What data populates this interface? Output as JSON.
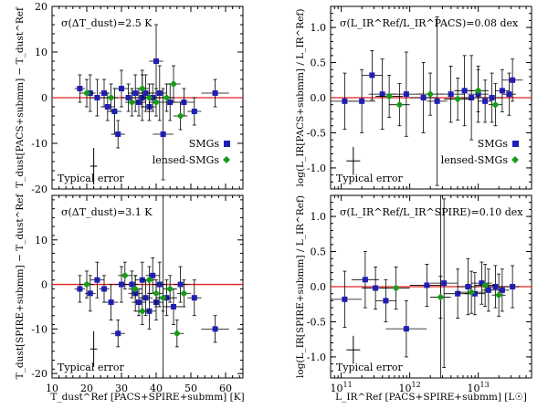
{
  "legend": {
    "smgs": "SMGs",
    "lensed": "lensed-SMGs"
  },
  "colors": {
    "smg": "#1f1fb4",
    "lensed": "#1a9a1a",
    "ref_line": "#e02020",
    "axis": "#000000"
  },
  "chart_data": [
    {
      "id": "tl",
      "type": "scatter",
      "annotation": "σ(ΔT_dust)=2.5 K",
      "typical_error": "Typical error",
      "ylabel": "T_dust[PACS+submm] − T_dust^Ref",
      "xlabel": "",
      "xlim": [
        10,
        65
      ],
      "ylim": [
        -20,
        20
      ],
      "xticks": [
        10,
        20,
        30,
        40,
        50,
        60
      ],
      "yticks": [
        -20,
        -10,
        0,
        10,
        20
      ],
      "show_xticklabels": false,
      "legend": true,
      "ref_line": 0,
      "typical_error_bar": {
        "x": 22,
        "y": -15,
        "xerr": 1,
        "yerr": 4
      },
      "series": [
        {
          "name": "SMGs",
          "points": [
            {
              "x": 18,
              "y": 2,
              "xe": 1.5,
              "ye": 3
            },
            {
              "x": 21,
              "y": 1,
              "xe": 1.5,
              "ye": 4
            },
            {
              "x": 23,
              "y": 0,
              "xe": 2,
              "ye": 4
            },
            {
              "x": 25,
              "y": 1,
              "xe": 1.5,
              "ye": 3
            },
            {
              "x": 26,
              "y": -2,
              "xe": 2,
              "ye": 3
            },
            {
              "x": 28,
              "y": -3,
              "xe": 2,
              "ye": 5
            },
            {
              "x": 29,
              "y": -8,
              "xe": 2,
              "ye": 3
            },
            {
              "x": 30,
              "y": 2,
              "xe": 2,
              "ye": 4
            },
            {
              "x": 32,
              "y": 0,
              "xe": 2,
              "ye": 3
            },
            {
              "x": 34,
              "y": 1,
              "xe": 2,
              "ye": 4
            },
            {
              "x": 35,
              "y": -1,
              "xe": 2,
              "ye": 3
            },
            {
              "x": 36,
              "y": 0,
              "xe": 2,
              "ye": 5
            },
            {
              "x": 37,
              "y": 1,
              "xe": 2,
              "ye": 4
            },
            {
              "x": 38,
              "y": -2,
              "xe": 2,
              "ye": 3
            },
            {
              "x": 39,
              "y": 0,
              "xe": 2,
              "ye": 3
            },
            {
              "x": 40,
              "y": 8,
              "xe": 2,
              "ye": 8
            },
            {
              "x": 41,
              "y": 1,
              "xe": 2,
              "ye": 6
            },
            {
              "x": 42,
              "y": -8,
              "xe": 3,
              "ye": 10
            },
            {
              "x": 44,
              "y": -1,
              "xe": 2,
              "ye": 4
            },
            {
              "x": 48,
              "y": -1,
              "xe": 3,
              "ye": 3
            },
            {
              "x": 51,
              "y": -3,
              "xe": 2,
              "ye": 3
            },
            {
              "x": 57,
              "y": 1,
              "xe": 4,
              "ye": 3
            }
          ]
        },
        {
          "name": "lensed-SMGs",
          "points": [
            {
              "x": 20,
              "y": 1,
              "xe": 2,
              "ye": 3
            },
            {
              "x": 27,
              "y": 0,
              "xe": 2,
              "ye": 3
            },
            {
              "x": 33,
              "y": -1,
              "xe": 2,
              "ye": 3
            },
            {
              "x": 36,
              "y": 2,
              "xe": 2,
              "ye": 4
            },
            {
              "x": 38,
              "y": 0,
              "xe": 2,
              "ye": 3
            },
            {
              "x": 40,
              "y": -1,
              "xe": 2,
              "ye": 3
            },
            {
              "x": 43,
              "y": 0,
              "xe": 2,
              "ye": 3
            },
            {
              "x": 45,
              "y": 3,
              "xe": 2,
              "ye": 4
            },
            {
              "x": 47,
              "y": -4,
              "xe": 2,
              "ye": 3
            }
          ]
        }
      ]
    },
    {
      "id": "tr",
      "type": "scatter",
      "annotation": "σ(L_IR^Ref/L_IR^PACS)=0.08 dex",
      "typical_error": "Typical error",
      "ylabel": "log(L_IR[PACS+submm] / L_IR^Ref)",
      "xlabel": "",
      "xlog": true,
      "xlim": [
        70000000000.0,
        60000000000000.0
      ],
      "ylim": [
        -1.3,
        1.3
      ],
      "xticks_log": [
        11,
        12,
        13
      ],
      "yticks": [
        -1.0,
        -0.5,
        0.0,
        0.5,
        1.0
      ],
      "show_xticklabels": false,
      "legend": true,
      "ref_line": 0,
      "typical_error_bar": {
        "x": 150000000000.0,
        "y": -0.9,
        "xerr_dex": 0.1,
        "yerr": 0.2
      },
      "series": [
        {
          "name": "SMGs",
          "points": [
            {
              "lx": 11.05,
              "y": -0.05,
              "xe": 0.25,
              "ye": 0.4
            },
            {
              "lx": 11.3,
              "y": -0.05,
              "xe": 0.2,
              "ye": 0.45
            },
            {
              "lx": 11.45,
              "y": 0.32,
              "xe": 0.15,
              "ye": 0.35
            },
            {
              "lx": 11.6,
              "y": 0.05,
              "xe": 0.2,
              "ye": 0.5
            },
            {
              "lx": 11.95,
              "y": 0.05,
              "xe": 0.25,
              "ye": 0.6
            },
            {
              "lx": 12.2,
              "y": 0.0,
              "xe": 0.2,
              "ye": 0.5
            },
            {
              "lx": 12.4,
              "y": -0.05,
              "xe": 0.15,
              "ye": 1.2
            },
            {
              "lx": 12.6,
              "y": 0.05,
              "xe": 0.2,
              "ye": 0.4
            },
            {
              "lx": 12.8,
              "y": 0.1,
              "xe": 0.15,
              "ye": 0.5
            },
            {
              "lx": 12.9,
              "y": 0.0,
              "xe": 0.15,
              "ye": 0.6
            },
            {
              "lx": 13.0,
              "y": 0.05,
              "xe": 0.15,
              "ye": 0.4
            },
            {
              "lx": 13.1,
              "y": -0.05,
              "xe": 0.1,
              "ye": 0.3
            },
            {
              "lx": 13.2,
              "y": 0.0,
              "xe": 0.15,
              "ye": 0.35
            },
            {
              "lx": 13.35,
              "y": 0.1,
              "xe": 0.1,
              "ye": 0.3
            },
            {
              "lx": 13.5,
              "y": 0.25,
              "xe": 0.15,
              "ye": 0.3
            },
            {
              "lx": 13.45,
              "y": 0.05,
              "xe": 0.1,
              "ye": 0.3
            }
          ]
        },
        {
          "name": "lensed-SMGs",
          "points": [
            {
              "lx": 11.7,
              "y": 0.02,
              "xe": 0.2,
              "ye": 0.3
            },
            {
              "lx": 11.85,
              "y": -0.1,
              "xe": 0.15,
              "ye": 0.3
            },
            {
              "lx": 12.3,
              "y": 0.05,
              "xe": 0.2,
              "ye": 0.3
            },
            {
              "lx": 12.7,
              "y": -0.02,
              "xe": 0.2,
              "ye": 0.3
            },
            {
              "lx": 13.0,
              "y": 0.1,
              "xe": 0.15,
              "ye": 0.3
            },
            {
              "lx": 13.25,
              "y": -0.1,
              "xe": 0.1,
              "ye": 0.3
            }
          ]
        }
      ]
    },
    {
      "id": "bl",
      "type": "scatter",
      "annotation": "σ(ΔT_dust)=3.1 K",
      "typical_error": "Typical error",
      "ylabel": "T_dust[SPIRE+submm] − T_dust^Ref",
      "xlabel": "T_dust^Ref [PACS+SPIRE+submm] [K]",
      "xlim": [
        10,
        65
      ],
      "ylim": [
        -21,
        20
      ],
      "xticks": [
        10,
        20,
        30,
        40,
        50,
        60
      ],
      "yticks": [
        -20,
        -10,
        0,
        10
      ],
      "show_xticklabels": true,
      "legend": false,
      "ref_line": 0,
      "typical_error_bar": {
        "x": 22,
        "y": -14.5,
        "xerr": 1,
        "yerr": 4
      },
      "series": [
        {
          "name": "SMGs",
          "points": [
            {
              "x": 18,
              "y": -1,
              "xe": 1.5,
              "ye": 3
            },
            {
              "x": 21,
              "y": -2,
              "xe": 1.5,
              "ye": 4
            },
            {
              "x": 23,
              "y": 1,
              "xe": 2,
              "ye": 4
            },
            {
              "x": 25,
              "y": -1,
              "xe": 1.5,
              "ye": 3
            },
            {
              "x": 27,
              "y": -4,
              "xe": 2,
              "ye": 4
            },
            {
              "x": 29,
              "y": -11,
              "xe": 2,
              "ye": 3
            },
            {
              "x": 30,
              "y": 0,
              "xe": 2,
              "ye": 4
            },
            {
              "x": 33,
              "y": 0,
              "xe": 2,
              "ye": 3
            },
            {
              "x": 34,
              "y": -2,
              "xe": 2,
              "ye": 4
            },
            {
              "x": 35,
              "y": -4,
              "xe": 2,
              "ye": 3
            },
            {
              "x": 36,
              "y": 1,
              "xe": 2,
              "ye": 4
            },
            {
              "x": 37,
              "y": -3,
              "xe": 2,
              "ye": 4
            },
            {
              "x": 38,
              "y": -6,
              "xe": 2,
              "ye": 4
            },
            {
              "x": 39,
              "y": 2,
              "xe": 2,
              "ye": 4
            },
            {
              "x": 40,
              "y": -4,
              "xe": 2,
              "ye": 4
            },
            {
              "x": 41,
              "y": 0,
              "xe": 2,
              "ye": 5
            },
            {
              "x": 43,
              "y": -3,
              "xe": 3,
              "ye": 4
            },
            {
              "x": 45,
              "y": -5,
              "xe": 3,
              "ye": 4
            },
            {
              "x": 47,
              "y": 0,
              "xe": 2,
              "ye": 4
            },
            {
              "x": 51,
              "y": -3,
              "xe": 2,
              "ye": 4
            },
            {
              "x": 57,
              "y": -10,
              "xe": 4,
              "ye": 3
            }
          ]
        },
        {
          "name": "lensed-SMGs",
          "points": [
            {
              "x": 20,
              "y": 0,
              "xe": 2,
              "ye": 3
            },
            {
              "x": 31,
              "y": 2,
              "xe": 2,
              "ye": 3
            },
            {
              "x": 34,
              "y": -1,
              "xe": 2,
              "ye": 3
            },
            {
              "x": 36,
              "y": -6,
              "xe": 2,
              "ye": 3
            },
            {
              "x": 38,
              "y": 1,
              "xe": 2,
              "ye": 3
            },
            {
              "x": 40,
              "y": -2,
              "xe": 2,
              "ye": 3
            },
            {
              "x": 42,
              "y": -3,
              "xe": 2,
              "ye": 3
            },
            {
              "x": 44,
              "y": -1,
              "xe": 2,
              "ye": 3
            },
            {
              "x": 46,
              "y": -11,
              "xe": 2,
              "ye": 3
            },
            {
              "x": 48,
              "y": -2,
              "xe": 2,
              "ye": 3
            }
          ]
        }
      ],
      "vertical_bar": {
        "x": 42
      }
    },
    {
      "id": "br",
      "type": "scatter",
      "annotation": "σ(L_IR^Ref/L_IR^SPIRE)=0.10 dex",
      "typical_error": "Typical error",
      "ylabel": "log(L_IR[SPIRE+submm] / L_IR^Ref)",
      "xlabel": "L_IR^Ref [PACS+SPIRE+submm] [L☉]",
      "xlog": true,
      "xlim": [
        70000000000.0,
        60000000000000.0
      ],
      "ylim": [
        -1.3,
        1.3
      ],
      "xticks_log": [
        11,
        12,
        13
      ],
      "yticks": [
        -1.0,
        -0.5,
        0.0,
        0.5,
        1.0
      ],
      "show_xticklabels": true,
      "legend": false,
      "ref_line": 0,
      "typical_error_bar": {
        "x": 150000000000.0,
        "y": -0.9,
        "xerr_dex": 0.1,
        "yerr": 0.2
      },
      "series": [
        {
          "name": "SMGs",
          "points": [
            {
              "lx": 11.05,
              "y": -0.18,
              "xe": 0.25,
              "ye": 0.4
            },
            {
              "lx": 11.35,
              "y": 0.1,
              "xe": 0.2,
              "ye": 0.4
            },
            {
              "lx": 11.5,
              "y": -0.02,
              "xe": 0.2,
              "ye": 0.3
            },
            {
              "lx": 11.65,
              "y": -0.2,
              "xe": 0.15,
              "ye": 0.3
            },
            {
              "lx": 11.95,
              "y": -0.6,
              "xe": 0.3,
              "ye": 0.4
            },
            {
              "lx": 12.25,
              "y": 0.02,
              "xe": 0.25,
              "ye": 0.3
            },
            {
              "lx": 12.5,
              "y": 0.05,
              "xe": 0.2,
              "ye": 1.2
            },
            {
              "lx": 12.7,
              "y": -0.1,
              "xe": 0.2,
              "ye": 0.35
            },
            {
              "lx": 12.85,
              "y": 0.0,
              "xe": 0.15,
              "ye": 0.4
            },
            {
              "lx": 12.95,
              "y": -0.1,
              "xe": 0.15,
              "ye": 0.3
            },
            {
              "lx": 13.05,
              "y": 0.05,
              "xe": 0.15,
              "ye": 0.3
            },
            {
              "lx": 13.15,
              "y": -0.05,
              "xe": 0.1,
              "ye": 0.3
            },
            {
              "lx": 13.25,
              "y": 0.0,
              "xe": 0.15,
              "ye": 0.3
            },
            {
              "lx": 13.35,
              "y": -0.05,
              "xe": 0.1,
              "ye": 0.3
            },
            {
              "lx": 13.5,
              "y": 0.0,
              "xe": 0.1,
              "ye": 0.3
            }
          ]
        },
        {
          "name": "lensed-SMGs",
          "points": [
            {
              "lx": 11.8,
              "y": -0.02,
              "xe": 0.2,
              "ye": 0.3
            },
            {
              "lx": 12.45,
              "y": -0.15,
              "xe": 0.15,
              "ye": 0.3
            },
            {
              "lx": 12.9,
              "y": -0.08,
              "xe": 0.2,
              "ye": 0.3
            },
            {
              "lx": 13.1,
              "y": 0.02,
              "xe": 0.15,
              "ye": 0.3
            },
            {
              "lx": 13.3,
              "y": -0.12,
              "xe": 0.1,
              "ye": 0.3
            }
          ]
        }
      ],
      "vertical_bar": {
        "lx": 12.45
      }
    }
  ]
}
